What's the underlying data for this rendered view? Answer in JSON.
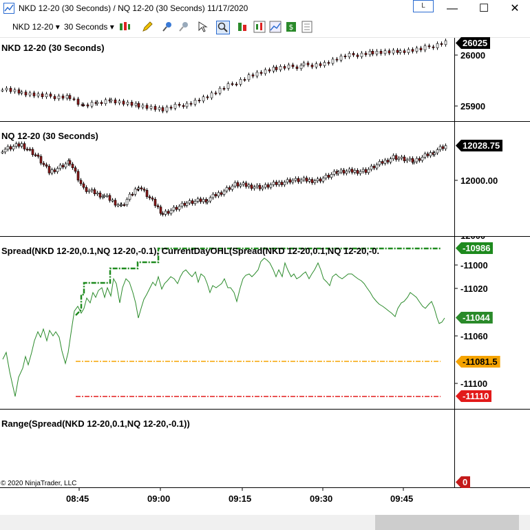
{
  "window": {
    "title": "NKD 12-20 (30 Seconds) / NQ 12-20 (30 Seconds)  11/17/2020",
    "link_label": "L",
    "minimize": "—",
    "maximize": "☐",
    "close": "✕"
  },
  "toolbar": {
    "instrument": "NKD 12-20",
    "interval": "30 Seconds"
  },
  "panels": {
    "nkd": {
      "title": "NKD 12-20 (30 Seconds)",
      "ticks": [
        "26000",
        "25900"
      ],
      "last_price": "26025"
    },
    "nq": {
      "title": "NQ 12-20 (30 Seconds)",
      "ticks": [
        "12000.00"
      ],
      "last_price": "12028.75",
      "partial_tick": "12000"
    },
    "spread": {
      "title": "Spread(NKD  12-20,0.1,NQ  12-20,-0.1),  CurrentDayOHL(Spread(NKD  12-20,0.1,NQ  12-20,-0.",
      "ticks": [
        "-11000",
        "-11020",
        "-11060",
        "-11100"
      ],
      "high": "-10986",
      "last": "-11044",
      "open": "-11081.5",
      "low": "-11110"
    },
    "range": {
      "title": "Range(Spread(NKD 12-20,0.1,NQ 12-20,-0.1))",
      "value": "0"
    }
  },
  "time_axis": [
    "08:45",
    "09:00",
    "09:15",
    "09:30",
    "09:45"
  ],
  "copyright": "© 2020 NinjaTrader, LLC",
  "colors": {
    "high": "#1e8a1e",
    "open": "#f5a300",
    "low": "#e21a1a",
    "line": "#2a8a2a",
    "up_candle": "#ffffff",
    "down_candle": "#8b1a1a"
  }
}
